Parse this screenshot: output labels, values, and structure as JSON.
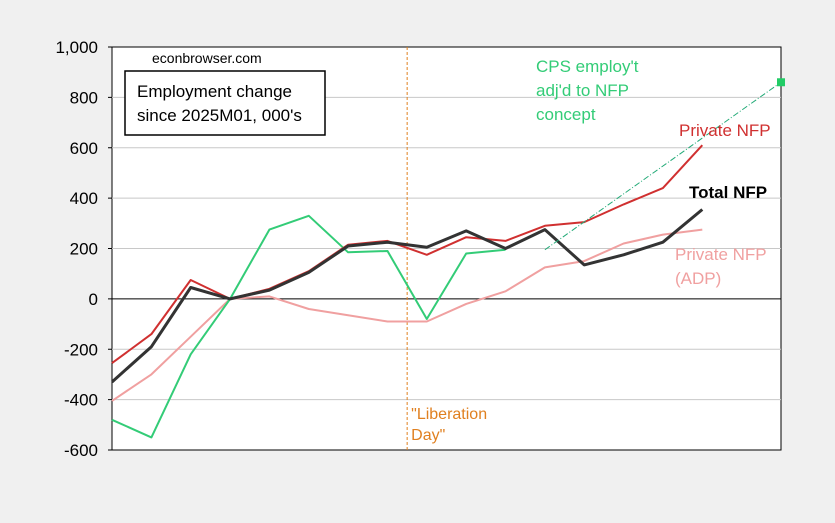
{
  "chart_data": {
    "type": "line",
    "source_label": "econbrowser.com",
    "title_lines": [
      "Employment change",
      "since 2025M01, 000's"
    ],
    "ylim": [
      -600,
      1000
    ],
    "yticks": [
      -600,
      -400,
      -200,
      0,
      200,
      400,
      600,
      800,
      1000
    ],
    "ytick_labels": [
      "-600",
      "-400",
      "-200",
      "0",
      "200",
      "400",
      "600",
      "800",
      "1,000"
    ],
    "x": [
      -1,
      0,
      1,
      2,
      3,
      4,
      5,
      6,
      7,
      8,
      9,
      10,
      11,
      12,
      13,
      14,
      15,
      16
    ],
    "grid": "horizontal",
    "series": [
      {
        "name": "Total NFP",
        "label_lines": [
          "Total NFP"
        ],
        "color": "#333333",
        "values": [
          -330,
          -190,
          45,
          0,
          35,
          105,
          210,
          225,
          205,
          270,
          200,
          275,
          135,
          175,
          225,
          355,
          null,
          null
        ]
      },
      {
        "name": "Private NFP",
        "label_lines": [
          "Private NFP"
        ],
        "color": "#d03030",
        "values": [
          -255,
          -140,
          75,
          0,
          40,
          110,
          215,
          230,
          175,
          245,
          230,
          290,
          305,
          375,
          440,
          610,
          null,
          null
        ]
      },
      {
        "name": "Private NFP (ADP)",
        "label_lines": [
          "Private NFP",
          "(ADP)"
        ],
        "color": "#f0a0a0",
        "values": [
          -405,
          -300,
          -150,
          0,
          10,
          -40,
          -65,
          -90,
          -90,
          -20,
          30,
          125,
          150,
          220,
          255,
          275,
          null,
          null
        ]
      },
      {
        "name": "CPS employ't adj'd to NFP concept",
        "label_lines": [
          "CPS employ't",
          "adj'd to NFP",
          "concept"
        ],
        "color": "#33cc77",
        "values": [
          -480,
          -550,
          -220,
          0,
          275,
          330,
          185,
          190,
          -80,
          180,
          195,
          null,
          null,
          null,
          null,
          null,
          null,
          null
        ]
      }
    ],
    "cps_extrapolation": {
      "from_x": 10,
      "from_y": 195,
      "to_x": 16,
      "to_y": 860
    },
    "event_line": {
      "x": 6.5,
      "label_lines": [
        "\"Liberation",
        "Day\""
      ],
      "color": "#e08020"
    }
  }
}
